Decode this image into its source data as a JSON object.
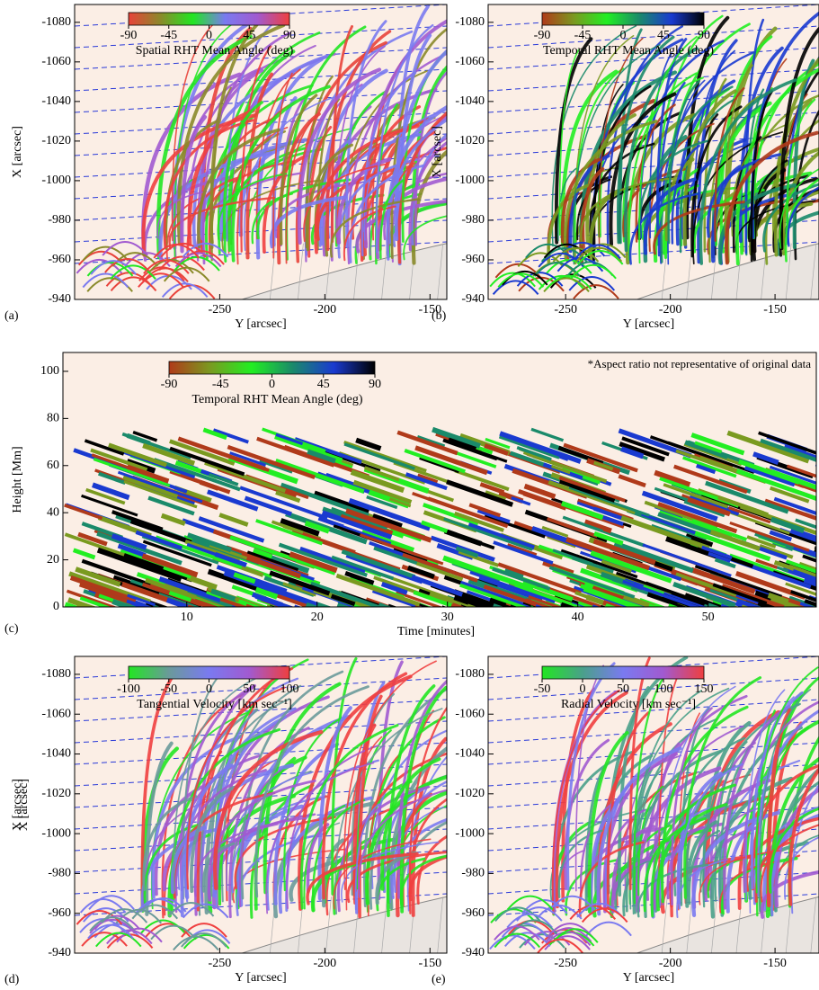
{
  "chart_data": [
    {
      "type": "image",
      "panel_label": "(a)",
      "xlabel": "Y [arcsec]",
      "ylabel": "X [arcsec]",
      "xlim": [
        -319,
        -142
      ],
      "xticks": [
        -250,
        -200,
        -150
      ],
      "ylim": [
        -940,
        -1089
      ],
      "yticks": [
        -940,
        -960,
        -980,
        -1000,
        -1020,
        -1040,
        -1060,
        -1080
      ],
      "colorbar": {
        "label": "Spatial RHT Mean Angle (deg)",
        "lim": [
          -90,
          90
        ],
        "ticks": [
          -90,
          -45,
          0,
          45,
          90
        ],
        "colors": [
          "#e8423a",
          "#8a8a2a",
          "#22e622",
          "#7a7af0",
          "#a15ad0",
          "#ef3f3f"
        ]
      }
    },
    {
      "type": "image",
      "panel_label": "(b)",
      "xlabel": "Y [arcsec]",
      "ylabel": "X [arcsec]",
      "xlim": [
        -287,
        -129
      ],
      "xticks": [
        -250,
        -200,
        -150
      ],
      "ylim": [
        -940,
        -1089
      ],
      "yticks": [
        -940,
        -960,
        -980,
        -1000,
        -1020,
        -1040,
        -1060,
        -1080
      ],
      "colorbar": {
        "label": "Temporal RHT Mean Angle (deg)",
        "lim": [
          -90,
          90
        ],
        "ticks": [
          -90,
          -45,
          0,
          45,
          90
        ],
        "colors": [
          "#b03a1a",
          "#7a9a20",
          "#22ee22",
          "#1a8a6a",
          "#1a3ad0",
          "#000000"
        ]
      }
    },
    {
      "type": "image",
      "panel_label": "(c)",
      "xlabel": "Time [minutes]",
      "ylabel": "Height [Mm]",
      "annotation": "*Aspect ratio not representative of original data",
      "xlim": [
        0.5,
        58.3
      ],
      "xticks": [
        10,
        20,
        30,
        40,
        50
      ],
      "ylim": [
        0,
        108
      ],
      "yticks": [
        0,
        20,
        40,
        60,
        80,
        100
      ],
      "colorbar": {
        "label": "Temporal RHT Mean Angle (deg)",
        "lim": [
          -90,
          90
        ],
        "ticks": [
          -90,
          -45,
          0,
          45,
          90
        ],
        "colors": [
          "#b03a1a",
          "#7a9a20",
          "#22ee22",
          "#1a8a6a",
          "#1a3ad0",
          "#000000"
        ]
      }
    },
    {
      "type": "image",
      "panel_label": "(d)",
      "xlabel": "Y [arcsec]",
      "ylabel": "X [arcsec]",
      "xlim": [
        -319,
        -142
      ],
      "xticks": [
        -250,
        -200,
        -150
      ],
      "ylim": [
        -940,
        -1089
      ],
      "yticks": [
        -940,
        -960,
        -980,
        -1000,
        -1020,
        -1040,
        -1060,
        -1080
      ],
      "colorbar": {
        "label": "Tangential Velocity [km sec⁻¹]",
        "lim": [
          -100,
          100
        ],
        "ticks": [
          -100,
          -50,
          0,
          50,
          100
        ],
        "colors": [
          "#22e622",
          "#6a9a9a",
          "#7a7af0",
          "#a15ad0",
          "#ef3f3f"
        ]
      }
    },
    {
      "type": "image",
      "panel_label": "(e)",
      "xlabel": "Y [arcsec]",
      "ylabel": "X [arcsec]",
      "xlim": [
        -287,
        -129
      ],
      "xticks": [
        -250,
        -200,
        -150
      ],
      "ylim": [
        -940,
        -1089
      ],
      "yticks": [
        -940,
        -960,
        -980,
        -1000,
        -1020,
        -1040,
        -1060,
        -1080
      ],
      "colorbar": {
        "label": "Radial Velocity [km sec⁻¹]",
        "lim": [
          -50,
          150
        ],
        "ticks": [
          -50,
          0,
          50,
          100,
          150
        ],
        "colors": [
          "#22e622",
          "#4aa08a",
          "#7a7af0",
          "#a15ad0",
          "#ef3f3f"
        ]
      }
    }
  ]
}
